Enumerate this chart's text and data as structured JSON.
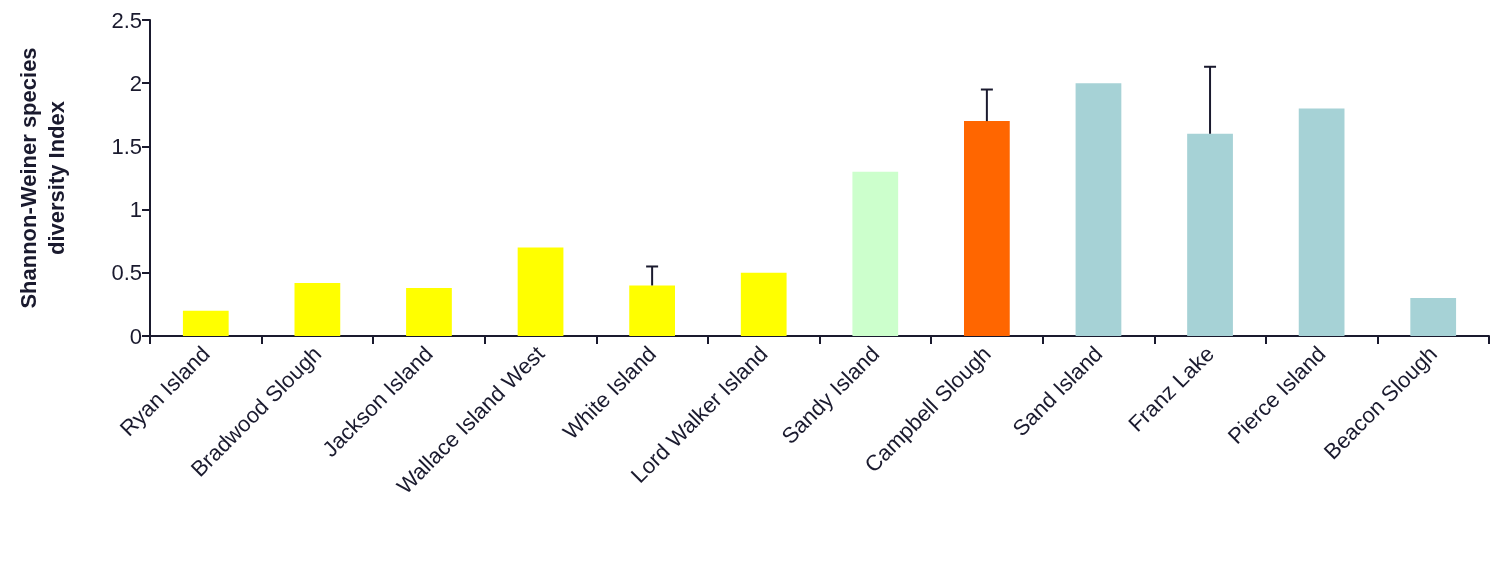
{
  "chart_data": {
    "type": "bar",
    "ylabel": "Shannon-Weiner species\ndiversity Index",
    "categories": [
      "Ryan Island",
      "Bradwood Slough",
      "Jackson Island",
      "Wallace Island West",
      "White Island",
      "Lord Walker Island",
      "Sandy Island",
      "Campbell Slough",
      "Sand Island",
      "Franz Lake",
      "Pierce Island",
      "Beacon Slough"
    ],
    "values": [
      0.2,
      0.42,
      0.38,
      0.7,
      0.4,
      0.5,
      1.3,
      1.7,
      2.0,
      1.6,
      1.8,
      0.3
    ],
    "colors": [
      "#ffff00",
      "#ffff00",
      "#ffff00",
      "#ffff00",
      "#ffff00",
      "#ffff00",
      "#ccffcc",
      "#ff6600",
      "#a6d2d6",
      "#a6d2d6",
      "#a6d2d6",
      "#a6d2d6"
    ],
    "errors": [
      null,
      null,
      null,
      null,
      [
        0.4,
        0.55
      ],
      null,
      null,
      [
        1.7,
        1.95
      ],
      null,
      [
        1.6,
        2.13
      ],
      null,
      null
    ],
    "ylim": [
      0,
      2.5
    ],
    "yticks": [
      0,
      0.5,
      1,
      1.5,
      2,
      2.5
    ],
    "grid": false
  }
}
